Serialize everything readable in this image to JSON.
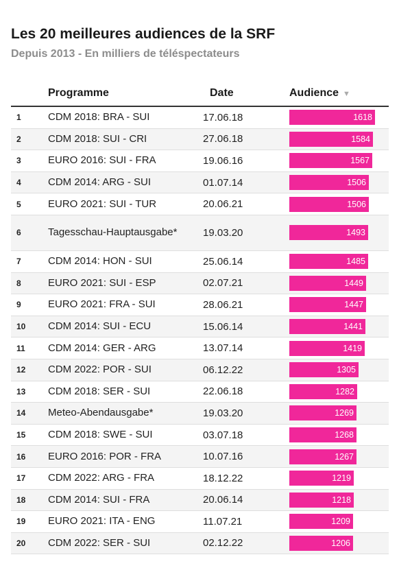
{
  "title": "Les 20 meilleures audiences de la SRF",
  "subtitle": "Depuis 2013 - En milliers de téléspectateurs",
  "columns": {
    "programme": "Programme",
    "date": "Date",
    "audience": "Audience",
    "sort_icon": "▼"
  },
  "colors": {
    "bar": "#f0279a",
    "text": "#222222",
    "subtitle": "#8c8c8c"
  },
  "rows": [
    {
      "rank": "1",
      "programme": "CDM 2018: BRA - SUI",
      "date": "17.06.18",
      "audience": 1618
    },
    {
      "rank": "2",
      "programme": "CDM 2018: SUI - CRI",
      "date": "27.06.18",
      "audience": 1584
    },
    {
      "rank": "3",
      "programme": "EURO 2016: SUI - FRA",
      "date": "19.06.16",
      "audience": 1567
    },
    {
      "rank": "4",
      "programme": "CDM 2014: ARG - SUI",
      "date": "01.07.14",
      "audience": 1506
    },
    {
      "rank": "5",
      "programme": "EURO 2021: SUI - TUR",
      "date": "20.06.21",
      "audience": 1506
    },
    {
      "rank": "6",
      "programme": "Tagesschau-Hauptausgabe*",
      "date": "19.03.20",
      "audience": 1493
    },
    {
      "rank": "7",
      "programme": "CDM 2014: HON - SUI",
      "date": "25.06.14",
      "audience": 1485
    },
    {
      "rank": "8",
      "programme": "EURO 2021: SUI - ESP",
      "date": "02.07.21",
      "audience": 1449
    },
    {
      "rank": "9",
      "programme": "EURO 2021: FRA - SUI",
      "date": "28.06.21",
      "audience": 1447
    },
    {
      "rank": "10",
      "programme": "CDM 2014: SUI - ECU",
      "date": "15.06.14",
      "audience": 1441
    },
    {
      "rank": "11",
      "programme": "CDM 2014: GER - ARG",
      "date": "13.07.14",
      "audience": 1419
    },
    {
      "rank": "12",
      "programme": "CDM 2022: POR - SUI",
      "date": "06.12.22",
      "audience": 1305
    },
    {
      "rank": "13",
      "programme": "CDM 2018: SER - SUI",
      "date": "22.06.18",
      "audience": 1282
    },
    {
      "rank": "14",
      "programme": "Meteo-Abendausgabe*",
      "date": "19.03.20",
      "audience": 1269
    },
    {
      "rank": "15",
      "programme": "CDM 2018: SWE - SUI",
      "date": "03.07.18",
      "audience": 1268
    },
    {
      "rank": "16",
      "programme": "EURO 2016: POR - FRA",
      "date": "10.07.16",
      "audience": 1267
    },
    {
      "rank": "17",
      "programme": "CDM 2022: ARG - FRA",
      "date": "18.12.22",
      "audience": 1219
    },
    {
      "rank": "18",
      "programme": "CDM 2014: SUI - FRA",
      "date": "20.06.14",
      "audience": 1218
    },
    {
      "rank": "19",
      "programme": "EURO 2021: ITA - ENG",
      "date": "11.07.21",
      "audience": 1209
    },
    {
      "rank": "20",
      "programme": "CDM 2022: SER - SUI",
      "date": "02.12.22",
      "audience": 1206
    }
  ],
  "chart_data": {
    "type": "table",
    "title": "Les 20 meilleures audiences de la SRF",
    "subtitle": "Depuis 2013 - En milliers de téléspectateurs",
    "columns": [
      "Programme",
      "Date",
      "Audience"
    ],
    "categories": [
      "CDM 2018: BRA - SUI",
      "CDM 2018: SUI - CRI",
      "EURO 2016: SUI - FRA",
      "CDM 2014: ARG - SUI",
      "EURO 2021: SUI - TUR",
      "Tagesschau-Hauptausgabe*",
      "CDM 2014: HON - SUI",
      "EURO 2021: SUI - ESP",
      "EURO 2021: FRA - SUI",
      "CDM 2014: SUI - ECU",
      "CDM 2014: GER - ARG",
      "CDM 2022: POR - SUI",
      "CDM 2018: SER - SUI",
      "Meteo-Abendausgabe*",
      "CDM 2018: SWE - SUI",
      "EURO 2016: POR - FRA",
      "CDM 2022: ARG - FRA",
      "CDM 2014: SUI - FRA",
      "EURO 2021: ITA - ENG",
      "CDM 2022: SER - SUI"
    ],
    "values": [
      1618,
      1584,
      1567,
      1506,
      1506,
      1493,
      1485,
      1449,
      1447,
      1441,
      1419,
      1305,
      1282,
      1269,
      1268,
      1267,
      1219,
      1218,
      1209,
      1206
    ],
    "sort": "Audience descending"
  }
}
